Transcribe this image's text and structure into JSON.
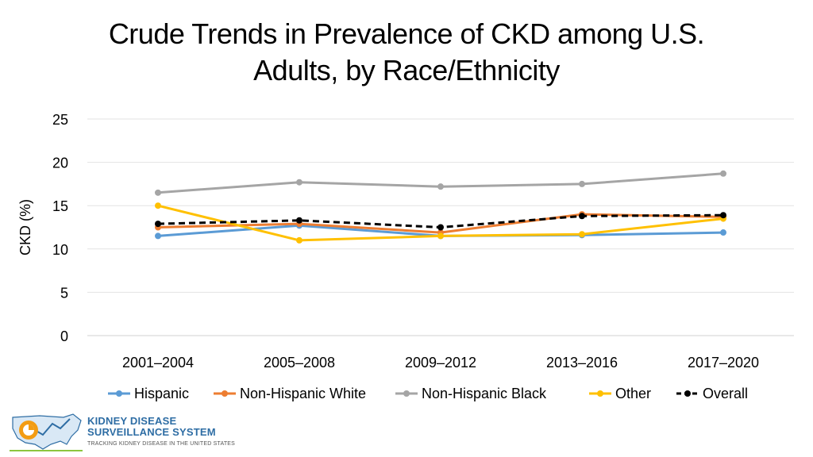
{
  "chart_data": {
    "type": "line",
    "title": "Crude Trends in Prevalence of CKD among U.S. Adults, by Race/Ethnicity",
    "title_lines": [
      "Crude Trends in Prevalence of CKD among U.S.",
      "Adults, by Race/Ethnicity"
    ],
    "xlabel": "",
    "ylabel": "CKD (%)",
    "ylim": [
      0,
      25
    ],
    "yticks": [
      0,
      5,
      10,
      15,
      20,
      25
    ],
    "grid": true,
    "legend_position": "bottom",
    "categories": [
      "2001–2004",
      "2005–2008",
      "2009–2012",
      "2013–2016",
      "2017–2020"
    ],
    "series": [
      {
        "name": "Hispanic",
        "color": "#5b9bd5",
        "dashed": false,
        "values": [
          11.5,
          12.7,
          11.5,
          11.6,
          11.9
        ]
      },
      {
        "name": "Non-Hispanic White",
        "color": "#ed7d31",
        "dashed": false,
        "values": [
          12.5,
          12.9,
          11.9,
          14.0,
          13.7
        ]
      },
      {
        "name": "Non-Hispanic Black",
        "color": "#a5a5a5",
        "dashed": false,
        "values": [
          16.5,
          17.7,
          17.2,
          17.5,
          18.7
        ]
      },
      {
        "name": "Other",
        "color": "#ffc000",
        "dashed": false,
        "values": [
          15.0,
          11.0,
          11.5,
          11.7,
          13.5
        ]
      },
      {
        "name": "Overall",
        "color": "#000000",
        "dashed": true,
        "values": [
          12.9,
          13.3,
          12.5,
          13.8,
          13.9
        ]
      }
    ]
  },
  "logo": {
    "line1": "KIDNEY DISEASE",
    "line2": "SURVEILLANCE SYSTEM",
    "tagline": "TRACKING KIDNEY DISEASE IN THE UNITED STATES",
    "colors": {
      "blue": "#2e6da4",
      "orange": "#f39c12",
      "green": "#8cc63f"
    }
  }
}
